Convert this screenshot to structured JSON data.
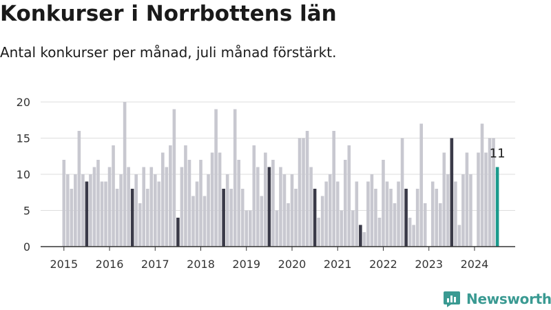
{
  "title": "Konkurser i Norrbottens län",
  "subtitle": "Antal konkurser per månad, juli månad förstärkt.",
  "brand": "Newsworthy",
  "colors": {
    "bar": "#c8c8d0",
    "highlight": "#3a3a48",
    "latest": "#1a9a8c",
    "axis": "#333333",
    "grid": "#dddddd",
    "brand": "#3a9a92"
  },
  "chart_data": {
    "type": "bar",
    "title": "Konkurser i Norrbottens län",
    "subtitle": "Antal konkurser per månad, juli månad förstärkt.",
    "xlabel": "",
    "ylabel": "",
    "ylim": [
      0,
      20
    ],
    "yticks": [
      0,
      5,
      10,
      15,
      20
    ],
    "grid": true,
    "start": "2015-01",
    "xtick_labels": [
      "2015",
      "2016",
      "2017",
      "2018",
      "2019",
      "2020",
      "2021",
      "2022",
      "2023",
      "2024"
    ],
    "highlight_month": "July",
    "latest_label": "11",
    "values": [
      12,
      10,
      8,
      10,
      16,
      10,
      9,
      10,
      11,
      12,
      9,
      9,
      11,
      14,
      8,
      10,
      20,
      11,
      8,
      10,
      6,
      11,
      8,
      11,
      10,
      9,
      13,
      11,
      14,
      19,
      4,
      11,
      14,
      12,
      7,
      9,
      12,
      7,
      10,
      13,
      19,
      13,
      8,
      10,
      8,
      19,
      12,
      8,
      5,
      5,
      14,
      11,
      7,
      13,
      11,
      12,
      5,
      11,
      10,
      6,
      10,
      8,
      15,
      15,
      16,
      11,
      8,
      4,
      7,
      9,
      10,
      16,
      9,
      5,
      12,
      14,
      5,
      9,
      3,
      2,
      9,
      10,
      8,
      4,
      12,
      9,
      8,
      6,
      9,
      15,
      8,
      4,
      3,
      8,
      17,
      6,
      0,
      9,
      8,
      6,
      13,
      10,
      15,
      9,
      3,
      10,
      13,
      10,
      0,
      13,
      17,
      13,
      15,
      15,
      11
    ]
  }
}
